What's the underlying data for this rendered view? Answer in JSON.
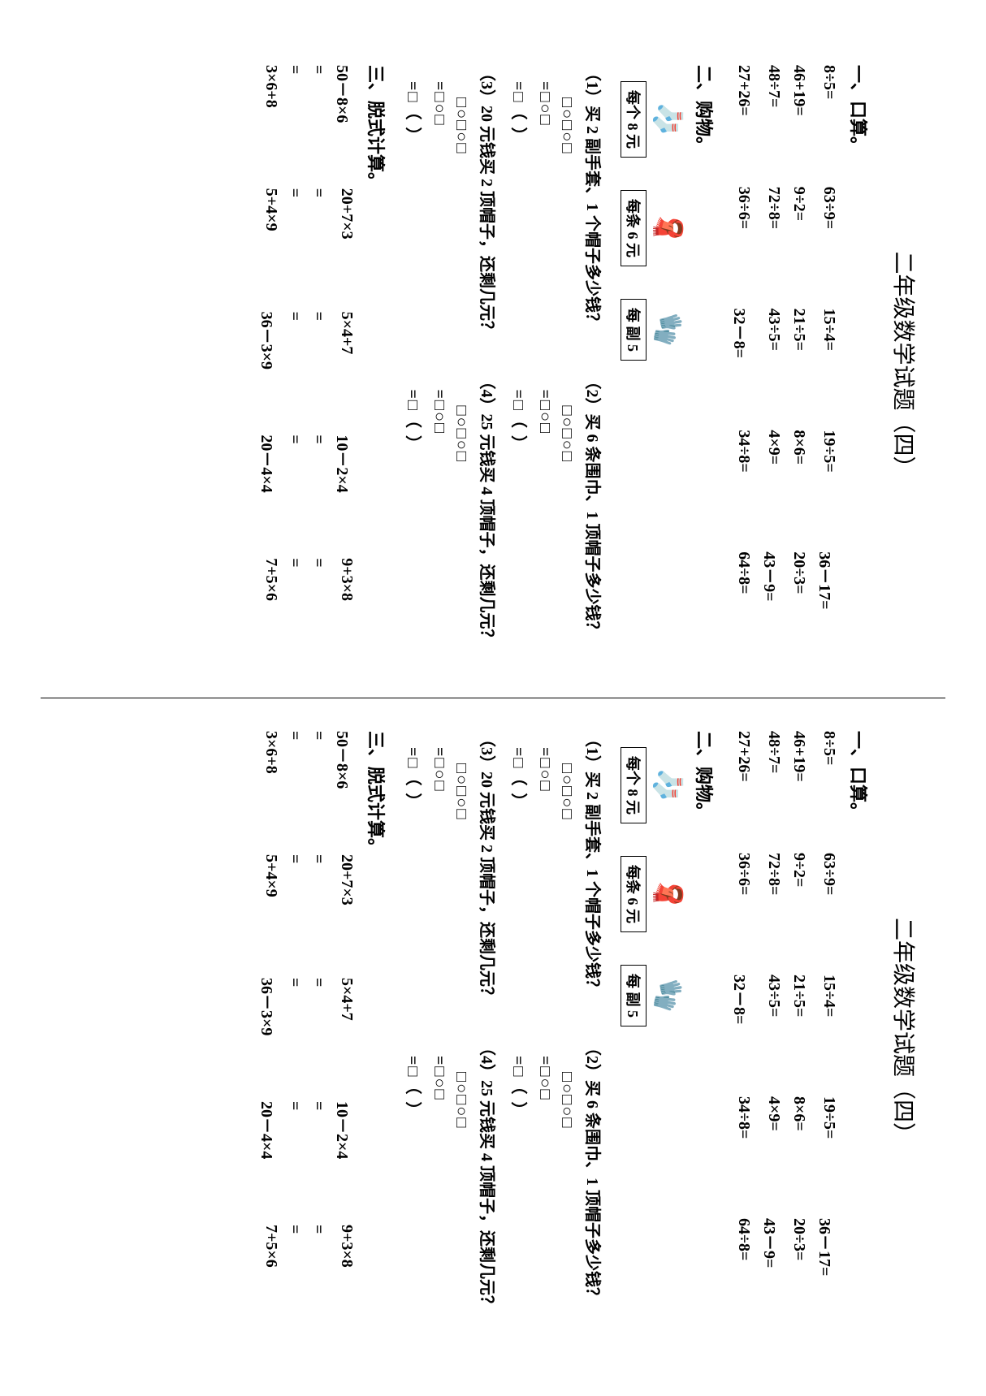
{
  "title": "二年级数学试题（四）",
  "sections": {
    "s1": "一、口算。",
    "s2": "二、购物。",
    "s3": "三、脱式计算。"
  },
  "arith": [
    [
      "8÷5=",
      "63÷9=",
      "15÷4=",
      "19÷5=",
      "36－17="
    ],
    [
      "46+19=",
      "9÷2=",
      "21÷5=",
      "8×6=",
      "20÷3="
    ],
    [
      "48÷7=",
      "72÷8=",
      "43÷5=",
      "4×9=",
      "43－9="
    ],
    [
      "27+26=",
      "36÷6=",
      "32－8=",
      "34÷8=",
      "64÷8="
    ]
  ],
  "shop": [
    {
      "icon": "🧦",
      "label": "每个 8 元"
    },
    {
      "icon": "🧣",
      "label": "每条 6 元"
    },
    {
      "icon": "🧤",
      "label": "每 副 5"
    }
  ],
  "questions": {
    "q1": "（1）买 2 副手套、1 个帽子多少钱？",
    "q2": "（2）买 6 条围巾、1 顶帽子多少钱？",
    "q3": "（3）20 元钱买 2 顶帽子，还剩几元？",
    "q4": "（4）25 元钱买 4 顶帽子，还剩几元？"
  },
  "boxline1": "□○□○□",
  "boxline2": "=□○□",
  "boxline3": "=□（ ）",
  "calc_row1": [
    "50－8×6",
    "20+7×3",
    "5×4+7",
    "10－2×4",
    "9+3×8"
  ],
  "calc_row2": [
    "3×6+8",
    "5+4×9",
    "36－3×9",
    "20－4×4",
    "7+5×6"
  ],
  "eq": "="
}
